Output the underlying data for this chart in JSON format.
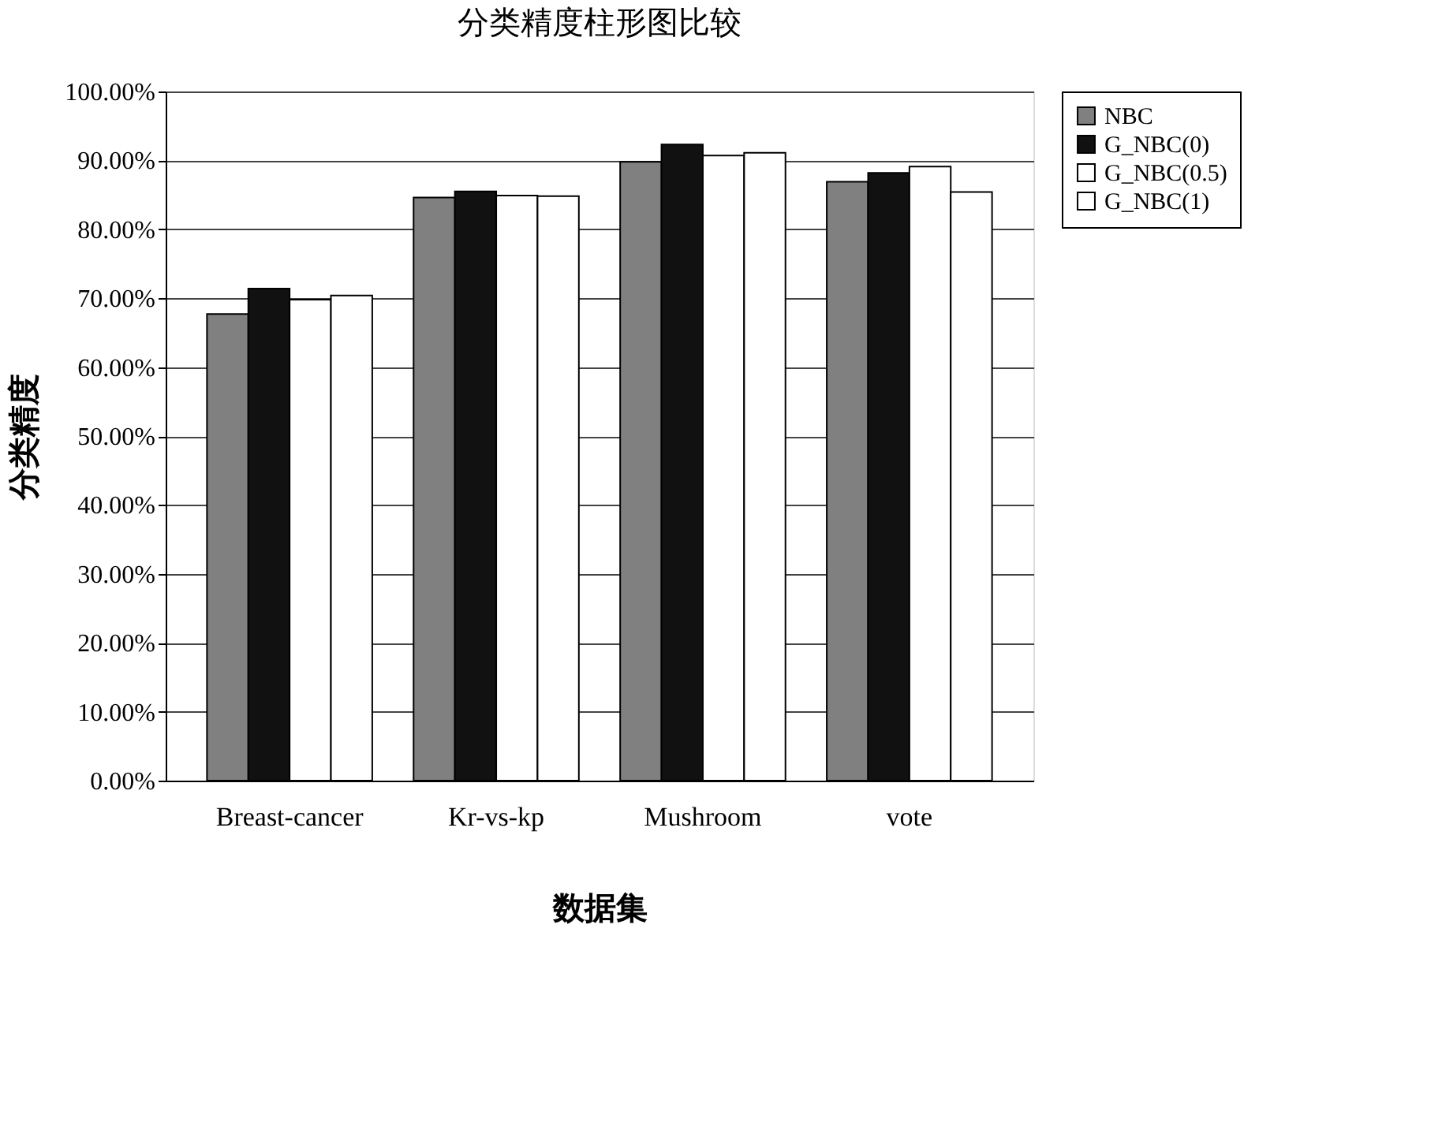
{
  "chart_data": {
    "type": "bar",
    "title": "分类精度柱形图比较",
    "xlabel": "数据集",
    "ylabel": "分类精度",
    "categories": [
      "Breast-cancer",
      "Kr-vs-kp",
      "Mushroom",
      "vote"
    ],
    "series": [
      {
        "name": "NBC",
        "color": "#808080",
        "values": [
          67.7,
          84.6,
          89.8,
          86.9
        ]
      },
      {
        "name": "G_NBC(0)",
        "color": "#111111",
        "values": [
          71.4,
          85.5,
          92.3,
          88.2
        ]
      },
      {
        "name": "G_NBC(0.5)",
        "color": "#ffffff",
        "values": [
          69.8,
          84.9,
          90.7,
          89.1
        ]
      },
      {
        "name": "G_NBC(1)",
        "color": "#ffffff",
        "values": [
          70.4,
          84.8,
          91.1,
          85.4
        ]
      }
    ],
    "ylim": [
      0,
      100
    ],
    "yticks": [
      {
        "value": 0,
        "label": "0.00%"
      },
      {
        "value": 10,
        "label": "10.00%"
      },
      {
        "value": 20,
        "label": "20.00%"
      },
      {
        "value": 30,
        "label": "30.00%"
      },
      {
        "value": 40,
        "label": "40.00%"
      },
      {
        "value": 50,
        "label": "50.00%"
      },
      {
        "value": 60,
        "label": "60.00%"
      },
      {
        "value": 70,
        "label": "70.00%"
      },
      {
        "value": 80,
        "label": "80.00%"
      },
      {
        "value": 90,
        "label": "90.00%"
      },
      {
        "value": 100,
        "label": "100.00%"
      }
    ],
    "grid": "y",
    "legend": "right"
  }
}
